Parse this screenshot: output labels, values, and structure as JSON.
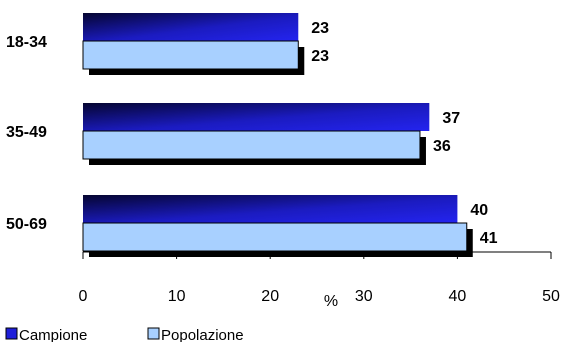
{
  "chart_data": {
    "type": "bar",
    "orientation": "horizontal",
    "categories": [
      "18-34",
      "35-49",
      "50-69"
    ],
    "series": [
      {
        "name": "Campione",
        "values": [
          23,
          37,
          40
        ]
      },
      {
        "name": "Popolazione",
        "values": [
          23,
          36,
          41
        ]
      }
    ],
    "xlabel": "%",
    "ylabel": "",
    "xlim": [
      0,
      50
    ],
    "xticks": [
      0,
      10,
      20,
      30,
      40,
      50
    ],
    "grid": false,
    "legend_position": "bottom-left",
    "colors": {
      "Campione": "#1f1fd9",
      "Campione_dark": "#050530",
      "Popolazione": "#a8d0ff",
      "shadow": "#000000",
      "axis": "#000000"
    }
  }
}
